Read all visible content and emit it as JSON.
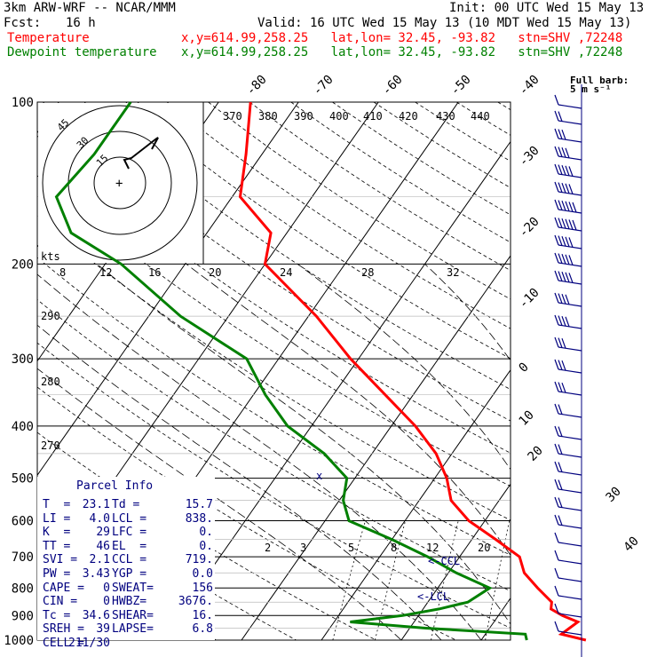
{
  "header": {
    "model": "3km ARW-WRF -- NCAR/MMM",
    "init": "Init: 00 UTC Wed 15 May 13",
    "fcst_label": "Fcst:",
    "fcst_value": "16 h",
    "valid": "Valid: 16 UTC Wed 15 May 13 (10 MDT Wed 15 May 13)",
    "temp_label": "Temperature",
    "dewp_label": "Dewpoint temperature",
    "location": "x,y=614.99,258.25   lat,lon= 32.45, -93.82   stn=SHV ,72248"
  },
  "colors": {
    "temperature": "#ff0000",
    "dewpoint": "#008000",
    "index_text": "#00007f",
    "wind_barbs": "#00007f"
  },
  "chart_data": {
    "type": "line",
    "diagram": "Skew-T log-P",
    "pressure_levels": [
      100,
      200,
      300,
      400,
      500,
      600,
      700,
      800,
      900,
      1000
    ],
    "isotherm_labels": [
      -80,
      -70,
      -60,
      -50,
      -40,
      -30,
      -20,
      -10,
      0,
      10,
      20,
      30,
      40
    ],
    "theta_labels": [
      370,
      380,
      390,
      400,
      410,
      420,
      430,
      440
    ],
    "low_theta_labels": [
      290,
      280,
      270
    ],
    "mixing_ratio_labels": [
      2,
      3,
      5,
      8,
      12,
      20
    ],
    "series": [
      {
        "name": "Temperature",
        "p": [
          1000,
          975,
          950,
          925,
          900,
          875,
          850,
          800,
          750,
          700,
          650,
          600,
          550,
          500,
          450,
          400,
          350,
          300,
          250,
          200,
          175,
          150,
          125,
          100
        ],
        "t": [
          23.1,
          19.5,
          20,
          20.5,
          18,
          16,
          15.5,
          12.5,
          9.5,
          7.5,
          3,
          -2,
          -6,
          -8.5,
          -12,
          -17,
          -23.5,
          -31,
          -39,
          -50,
          -52,
          -59,
          -62,
          -66
        ]
      },
      {
        "name": "Dewpoint temperature",
        "p": [
          1000,
          975,
          950,
          925,
          900,
          875,
          850,
          800,
          750,
          700,
          650,
          600,
          550,
          500,
          450,
          400,
          350,
          300,
          250,
          200,
          175,
          150,
          125,
          100
        ],
        "td": [
          15.7,
          15,
          2,
          -8,
          -2,
          2,
          5,
          6.5,
          1,
          -4,
          -10,
          -17,
          -19.5,
          -21,
          -26,
          -33,
          -38.5,
          -44,
          -56,
          -68,
          -77,
          -82,
          -81,
          -81
        ]
      }
    ],
    "hodograph": {
      "units": "kts",
      "ring_labels": [
        "15",
        "30",
        "45"
      ]
    },
    "speed_scale": [
      8,
      12,
      16,
      20,
      24,
      28,
      32
    ],
    "barb_note": {
      "line1": "Full barb:",
      "line2": "5 m s⁻¹"
    }
  },
  "parcel_info": {
    "title": "Parcel Info",
    "rows": [
      {
        "l": "T  =",
        "lv": "23.1",
        "r": "Td =",
        "rv": "15.7"
      },
      {
        "l": "LI =",
        "lv": "4.0",
        "r": "LCL =",
        "rv": "838."
      },
      {
        "l": "K  =",
        "lv": "29",
        "r": "LFC =",
        "rv": "0."
      },
      {
        "l": "TT =",
        "lv": "46",
        "r": "EL  =",
        "rv": "0."
      },
      {
        "l": "SVI =",
        "lv": "2.1",
        "r": "CCL =",
        "rv": "719."
      },
      {
        "l": "PW =",
        "lv": "3.43",
        "r": "YGP =",
        "rv": "0.0"
      },
      {
        "l": "CAPE =",
        "lv": "0",
        "r": "SWEAT=",
        "rv": "156"
      },
      {
        "l": "CIN =",
        "lv": "0",
        "r": "HWBZ=",
        "rv": "3676."
      },
      {
        "l": "Tc =",
        "lv": "34.6",
        "r": "SHEAR=",
        "rv": "16."
      },
      {
        "l": "SREH =",
        "lv": "39",
        "r": "LAPSE=",
        "rv": "6.8"
      },
      {
        "l": "CELL =",
        "lv": "211/30",
        "r": "",
        "rv": ""
      }
    ]
  },
  "markers": {
    "ccl": "<-CCL",
    "lcl": "<-LCL",
    "fz": "x"
  }
}
